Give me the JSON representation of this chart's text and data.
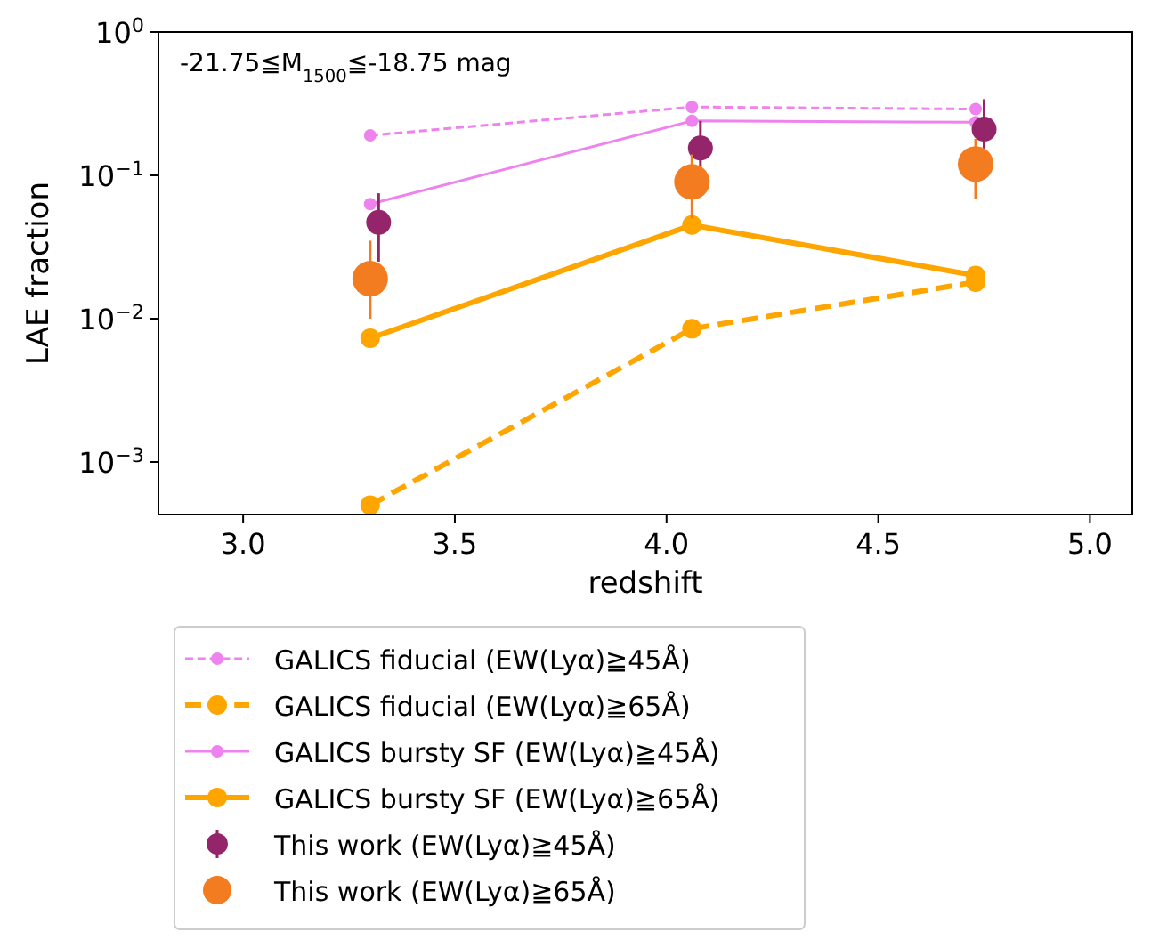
{
  "chart_data": {
    "type": "line",
    "xlabel": "redshift",
    "ylabel": "LAE fraction",
    "log": "y",
    "xlim": [
      2.8,
      5.1
    ],
    "xticks": [
      {
        "value": 3,
        "label": "3.0"
      },
      {
        "value": 3.5,
        "label": "3.5"
      },
      {
        "value": 4,
        "label": "4.0"
      },
      {
        "value": 4.5,
        "label": "4.5"
      },
      {
        "value": 5,
        "label": "5.0"
      }
    ],
    "ylim": [
      0.00043,
      1
    ],
    "yticks": [
      {
        "value": 0.001,
        "label": "10$^{−3}$"
      },
      {
        "value": 0.01,
        "label": "10$^{−2}$"
      },
      {
        "value": 0.1,
        "label": "10$^{−1}$"
      },
      {
        "value": 1,
        "label": "10$^{0}$"
      }
    ],
    "grid": false,
    "legend": "bottom",
    "annotations": [
      "-21.75≦M$_{1500}$≦-18.75 mag"
    ],
    "series": [
      {
        "name": "GALICS fiducial (EW(Lyα)≧45Å)",
        "type": "line",
        "color": "#ee82ee",
        "line_style": "dashed",
        "marker": "circle",
        "x": [
          3.3,
          4.06,
          4.73
        ],
        "values": [
          0.19,
          0.3,
          0.29
        ]
      },
      {
        "name": "GALICS fiducial (EW(Lyα)≧65Å)",
        "type": "line",
        "color": "#ffa500",
        "line_style": "dashed",
        "marker": "circle",
        "x": [
          3.3,
          4.06,
          4.73
        ],
        "values": [
          0.0005,
          0.0085,
          0.018
        ]
      },
      {
        "name": "GALICS bursty SF (EW(Lyα)≧45Å)",
        "type": "line",
        "color": "#ee82ee",
        "line_style": "solid",
        "marker": "circle",
        "x": [
          3.3,
          4.06,
          4.73
        ],
        "values": [
          0.063,
          0.24,
          0.235
        ]
      },
      {
        "name": "GALICS bursty SF (EW(Lyα)≧65Å)",
        "type": "line",
        "color": "#ffa500",
        "line_style": "solid",
        "marker": "circle",
        "x": [
          3.3,
          4.06,
          4.73
        ],
        "values": [
          0.0073,
          0.045,
          0.02
        ]
      },
      {
        "name": "This work (EW(Lyα)≧45Å)",
        "type": "scatter",
        "color": "#94256b",
        "marker": "circle",
        "x": [
          3.32,
          4.08,
          4.75
        ],
        "values": [
          0.047,
          0.155,
          0.21
        ],
        "errors": [
          [
            0.025,
            0.075
          ],
          [
            0.1,
            0.24
          ],
          [
            0.15,
            0.34
          ]
        ]
      },
      {
        "name": "This work (EW(Lyα)≧65Å)",
        "type": "scatter",
        "color": "#f47c20",
        "marker": "circle",
        "x": [
          3.3,
          4.06,
          4.73
        ],
        "values": [
          0.019,
          0.09,
          0.12
        ],
        "errors": [
          [
            0.01,
            0.035
          ],
          [
            0.05,
            0.14
          ],
          [
            0.068,
            0.18
          ]
        ]
      }
    ]
  }
}
